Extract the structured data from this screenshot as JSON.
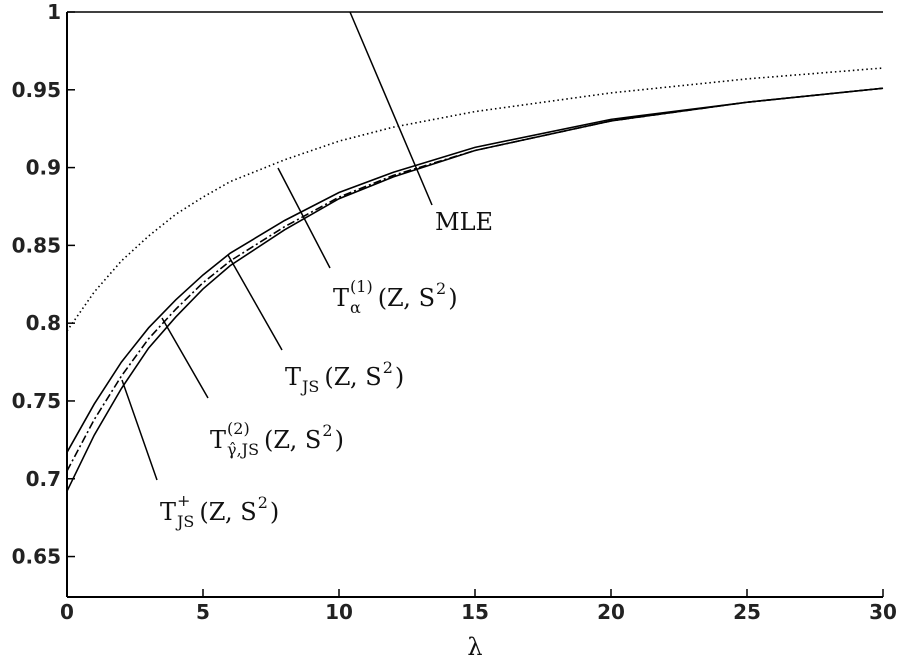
{
  "chart_data": {
    "type": "line",
    "x_label": "λ",
    "x": [
      0,
      1,
      2,
      3,
      4,
      5,
      6,
      8,
      10,
      12,
      15,
      20,
      25,
      30
    ],
    "xlim": [
      0,
      30
    ],
    "xticks": [
      0,
      5,
      10,
      15,
      20,
      25,
      30
    ],
    "ylim": [
      0.624,
      1
    ],
    "yticks": [
      0.65,
      0.7,
      0.75,
      0.8,
      0.85,
      0.9,
      0.95,
      1
    ],
    "series": [
      {
        "label": {
          "base": "MLE"
        },
        "color": "#000000",
        "dash": "solid",
        "values": [
          1,
          1,
          1,
          1,
          1,
          1,
          1,
          1,
          1,
          1,
          1,
          1,
          1,
          1
        ]
      },
      {
        "label": {
          "base": "T",
          "sub": "α",
          "sup": "(1)",
          "args": "(Z, S",
          "args_sup": "2",
          "close": ")"
        },
        "color": "#000000",
        "dash": "dotted",
        "values": [
          0.795,
          0.82,
          0.84,
          0.856,
          0.87,
          0.881,
          0.891,
          0.905,
          0.917,
          0.926,
          0.936,
          0.948,
          0.957,
          0.964
        ]
      },
      {
        "label": {
          "base": "T",
          "sub": "JS",
          "args": "(Z, S",
          "args_sup": "2",
          "close": ")"
        },
        "color": "#000000",
        "dash": "solid",
        "values": [
          0.717,
          0.748,
          0.775,
          0.797,
          0.815,
          0.831,
          0.845,
          0.866,
          0.884,
          0.897,
          0.913,
          0.931,
          0.942,
          0.951
        ]
      },
      {
        "label": {
          "base": "T",
          "sub": "γ̂,JS",
          "sup": "(2)",
          "args": "(Z, S",
          "args_sup": "2",
          "close": ")"
        },
        "color": "#000000",
        "dash": "dashdot",
        "values": [
          0.705,
          0.738,
          0.766,
          0.79,
          0.809,
          0.826,
          0.84,
          0.862,
          0.881,
          0.895,
          0.911,
          0.93,
          0.942,
          0.951
        ]
      },
      {
        "label": {
          "base": "T",
          "sub": "JS",
          "sup": "+",
          "args": "(Z, S",
          "args_sup": "2",
          "close": ")"
        },
        "color": "#000000",
        "dash": "solid",
        "values": [
          0.692,
          0.728,
          0.758,
          0.784,
          0.804,
          0.822,
          0.837,
          0.86,
          0.88,
          0.894,
          0.911,
          0.93,
          0.942,
          0.951
        ]
      }
    ]
  }
}
